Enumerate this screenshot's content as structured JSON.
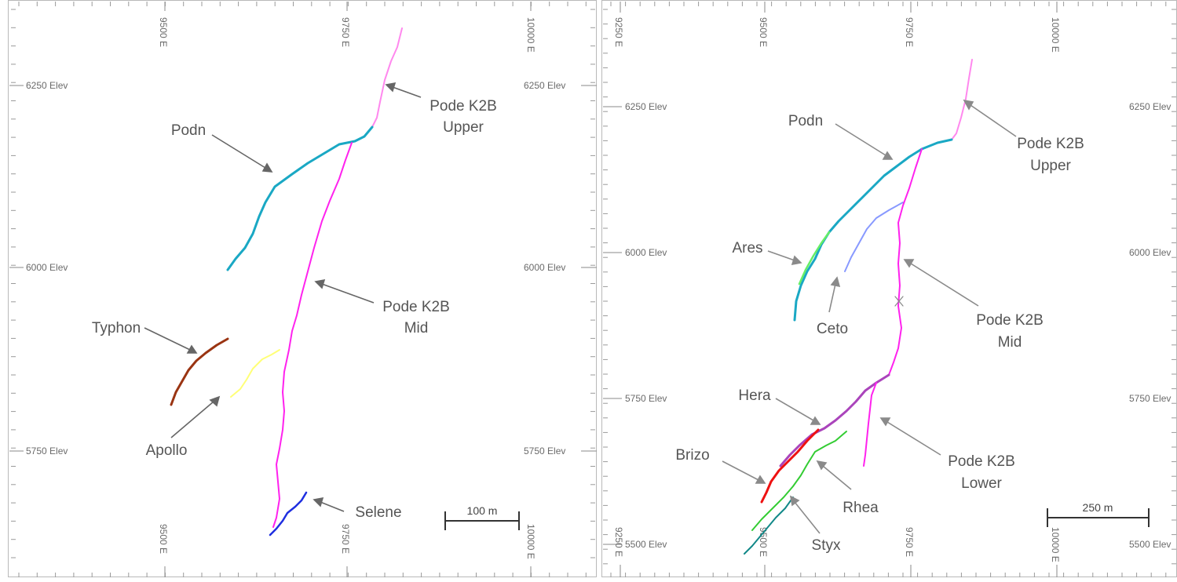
{
  "panels": [
    {
      "id": "left",
      "easting_labels_top": [
        "9500 E",
        "9750 E",
        "10000 E"
      ],
      "easting_labels_bottom": [
        "9500 E",
        "9750 E",
        "10000 E"
      ],
      "elev_labels_left": [
        "6250 Elev",
        "6000 Elev",
        "5750 Elev"
      ],
      "elev_labels_right": [
        "6250 Elev",
        "6000 Elev",
        "5750 Elev"
      ],
      "scale_bar_label": "100 m",
      "callouts": [
        {
          "key": "pode_upper",
          "lines": [
            "Pode K2B",
            "Upper"
          ]
        },
        {
          "key": "podn",
          "lines": [
            "Podn"
          ]
        },
        {
          "key": "pode_mid",
          "lines": [
            "Pode K2B",
            "Mid"
          ]
        },
        {
          "key": "typhon",
          "lines": [
            "Typhon"
          ]
        },
        {
          "key": "apollo",
          "lines": [
            "Apollo"
          ]
        },
        {
          "key": "selene",
          "lines": [
            "Selene"
          ]
        }
      ],
      "traces": [
        {
          "key": "pode_upper",
          "color": "#ff88ee"
        },
        {
          "key": "podn",
          "color": "#1aa8c4"
        },
        {
          "key": "pode_mid",
          "color": "#ff22ee"
        },
        {
          "key": "typhon",
          "color": "#9a3412"
        },
        {
          "key": "apollo",
          "color": "#ffff77"
        },
        {
          "key": "selene",
          "color": "#1f2fe0"
        }
      ]
    },
    {
      "id": "right",
      "easting_labels_top": [
        "9250 E",
        "9500 E",
        "9750 E",
        "10000 E"
      ],
      "easting_labels_bottom": [
        "9250 E",
        "9500 E",
        "9750 E",
        "10000 E"
      ],
      "elev_labels_left": [
        "6250 Elev",
        "6000 Elev",
        "5750 Elev",
        "5500 Elev"
      ],
      "elev_labels_right": [
        "6250 Elev",
        "6000 Elev",
        "5750 Elev",
        "5500 Elev"
      ],
      "scale_bar_label": "250 m",
      "callouts": [
        {
          "key": "pode_upper",
          "lines": [
            "Pode K2B",
            "Upper"
          ]
        },
        {
          "key": "podn",
          "lines": [
            "Podn"
          ]
        },
        {
          "key": "ares",
          "lines": [
            "Ares"
          ]
        },
        {
          "key": "ceto",
          "lines": [
            "Ceto"
          ]
        },
        {
          "key": "pode_mid",
          "lines": [
            "Pode K2B",
            "Mid"
          ]
        },
        {
          "key": "hera",
          "lines": [
            "Hera"
          ]
        },
        {
          "key": "pode_lower",
          "lines": [
            "Pode K2B",
            "Lower"
          ]
        },
        {
          "key": "brizo",
          "lines": [
            "Brizo"
          ]
        },
        {
          "key": "rhea",
          "lines": [
            "Rhea"
          ]
        },
        {
          "key": "styx",
          "lines": [
            "Styx"
          ]
        }
      ],
      "traces": [
        {
          "key": "pode_upper",
          "color": "#ff88ee"
        },
        {
          "key": "podn",
          "color": "#1aa8c4"
        },
        {
          "key": "ares",
          "color": "#66ee66"
        },
        {
          "key": "ceto",
          "color": "#8899ff"
        },
        {
          "key": "pode_mid",
          "color": "#ff22ee"
        },
        {
          "key": "hera",
          "color": "#aa44bb"
        },
        {
          "key": "pode_lower",
          "color": "#ff22ee"
        },
        {
          "key": "brizo",
          "color": "#ee1111"
        },
        {
          "key": "rhea",
          "color": "#33cc33"
        },
        {
          "key": "styx",
          "color": "#118888"
        }
      ]
    }
  ]
}
